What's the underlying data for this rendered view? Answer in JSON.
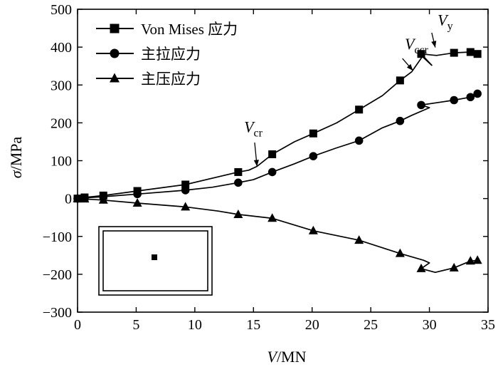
{
  "chart_data": {
    "type": "line",
    "xlabel": {
      "var": "V",
      "unit": "/MN"
    },
    "ylabel": {
      "var": "σ",
      "unit": "/MPa"
    },
    "xlim": [
      0,
      35
    ],
    "ylim": [
      -300,
      500
    ],
    "x_ticks": [
      0,
      5,
      10,
      15,
      20,
      25,
      30,
      35
    ],
    "y_ticks": [
      -300,
      -200,
      -100,
      0,
      100,
      200,
      300,
      400,
      500
    ],
    "x_tick_labels": [
      "0",
      "5",
      "10",
      "15",
      "20",
      "25",
      "30",
      "35"
    ],
    "y_tick_labels": [
      "−300",
      "−200",
      "−100",
      "0",
      "100",
      "200",
      "300",
      "400",
      "500"
    ],
    "grid": false,
    "legend_position": "top-left",
    "series": [
      {
        "name": "Von Mises 应力",
        "marker": "square",
        "line": [
          [
            0,
            0
          ],
          [
            0.6,
            3
          ],
          [
            2.2,
            8
          ],
          [
            5.1,
            20
          ],
          [
            9.2,
            37
          ],
          [
            13.7,
            70
          ],
          [
            14.6,
            75
          ],
          [
            15.3,
            85
          ],
          [
            16.6,
            117
          ],
          [
            18.5,
            150
          ],
          [
            20.1,
            172
          ],
          [
            22.1,
            200
          ],
          [
            24,
            235
          ],
          [
            26,
            272
          ],
          [
            27.5,
            312
          ],
          [
            28.5,
            335
          ],
          [
            29.4,
            375
          ],
          [
            30.2,
            352
          ],
          [
            29.3,
            382
          ],
          [
            30.6,
            378
          ],
          [
            32.1,
            385
          ],
          [
            33.5,
            387
          ],
          [
            34.1,
            382
          ]
        ],
        "markers": [
          [
            0,
            0
          ],
          [
            0.6,
            3
          ],
          [
            2.2,
            8
          ],
          [
            5.1,
            20
          ],
          [
            9.2,
            37
          ],
          [
            13.7,
            70
          ],
          [
            16.6,
            117
          ],
          [
            20.1,
            172
          ],
          [
            24,
            235
          ],
          [
            27.5,
            312
          ],
          [
            29.3,
            382
          ],
          [
            32.1,
            385
          ],
          [
            33.5,
            387
          ],
          [
            34.1,
            382
          ]
        ]
      },
      {
        "name": "主拉应力",
        "marker": "circle",
        "line": [
          [
            0,
            0
          ],
          [
            0.6,
            2
          ],
          [
            2.2,
            5
          ],
          [
            5.1,
            12
          ],
          [
            9.2,
            22
          ],
          [
            11.5,
            30
          ],
          [
            13.7,
            42
          ],
          [
            15,
            50
          ],
          [
            16.6,
            70
          ],
          [
            18.5,
            92
          ],
          [
            20.1,
            112
          ],
          [
            22,
            133
          ],
          [
            24,
            153
          ],
          [
            26,
            187
          ],
          [
            27.5,
            205
          ],
          [
            28.5,
            220
          ],
          [
            30,
            240
          ],
          [
            29.3,
            247
          ],
          [
            30.6,
            253
          ],
          [
            32.1,
            260
          ],
          [
            33.5,
            268
          ],
          [
            34.1,
            277
          ]
        ],
        "markers": [
          [
            0,
            0
          ],
          [
            0.6,
            2
          ],
          [
            2.2,
            5
          ],
          [
            5.1,
            12
          ],
          [
            9.2,
            22
          ],
          [
            13.7,
            42
          ],
          [
            16.6,
            70
          ],
          [
            20.1,
            112
          ],
          [
            24,
            153
          ],
          [
            27.5,
            205
          ],
          [
            29.3,
            247
          ],
          [
            32.1,
            260
          ],
          [
            33.5,
            268
          ],
          [
            34.1,
            277
          ]
        ]
      },
      {
        "name": "主压应力",
        "marker": "triangle",
        "line": [
          [
            0,
            0
          ],
          [
            0.6,
            -1
          ],
          [
            2.2,
            -4
          ],
          [
            5.1,
            -12
          ],
          [
            9.2,
            -22
          ],
          [
            12,
            -33
          ],
          [
            13.7,
            -42
          ],
          [
            16.6,
            -52
          ],
          [
            20.1,
            -85
          ],
          [
            24,
            -110
          ],
          [
            27.5,
            -145
          ],
          [
            29.5,
            -163
          ],
          [
            30,
            -170
          ],
          [
            29.3,
            -185
          ],
          [
            30.5,
            -195
          ],
          [
            32.1,
            -183
          ],
          [
            33.5,
            -165
          ],
          [
            34.1,
            -163
          ]
        ],
        "markers": [
          [
            0,
            0
          ],
          [
            0.6,
            -1
          ],
          [
            2.2,
            -4
          ],
          [
            5.1,
            -12
          ],
          [
            9.2,
            -22
          ],
          [
            13.7,
            -42
          ],
          [
            16.6,
            -52
          ],
          [
            20.1,
            -85
          ],
          [
            24,
            -110
          ],
          [
            27.5,
            -145
          ],
          [
            29.3,
            -185
          ],
          [
            32.1,
            -183
          ],
          [
            33.5,
            -165
          ],
          [
            34.1,
            -163
          ]
        ]
      }
    ],
    "annotations": [
      {
        "id": "vcr",
        "main": "V",
        "sub": "cr",
        "text_at": [
          14.2,
          175
        ],
        "arrow_from": [
          15.1,
          148
        ],
        "arrow_to": [
          15.3,
          85
        ]
      },
      {
        "id": "vccr",
        "main": "V",
        "sub": "ccr",
        "text_at": [
          27.9,
          395
        ],
        "arrow_from": [
          27.7,
          370
        ],
        "arrow_to": [
          28.6,
          338
        ]
      },
      {
        "id": "vy",
        "main": "V",
        "sub": "y",
        "text_at": [
          30.7,
          458
        ],
        "arrow_from": [
          30.2,
          438
        ],
        "arrow_to": [
          30.5,
          399
        ]
      }
    ]
  }
}
